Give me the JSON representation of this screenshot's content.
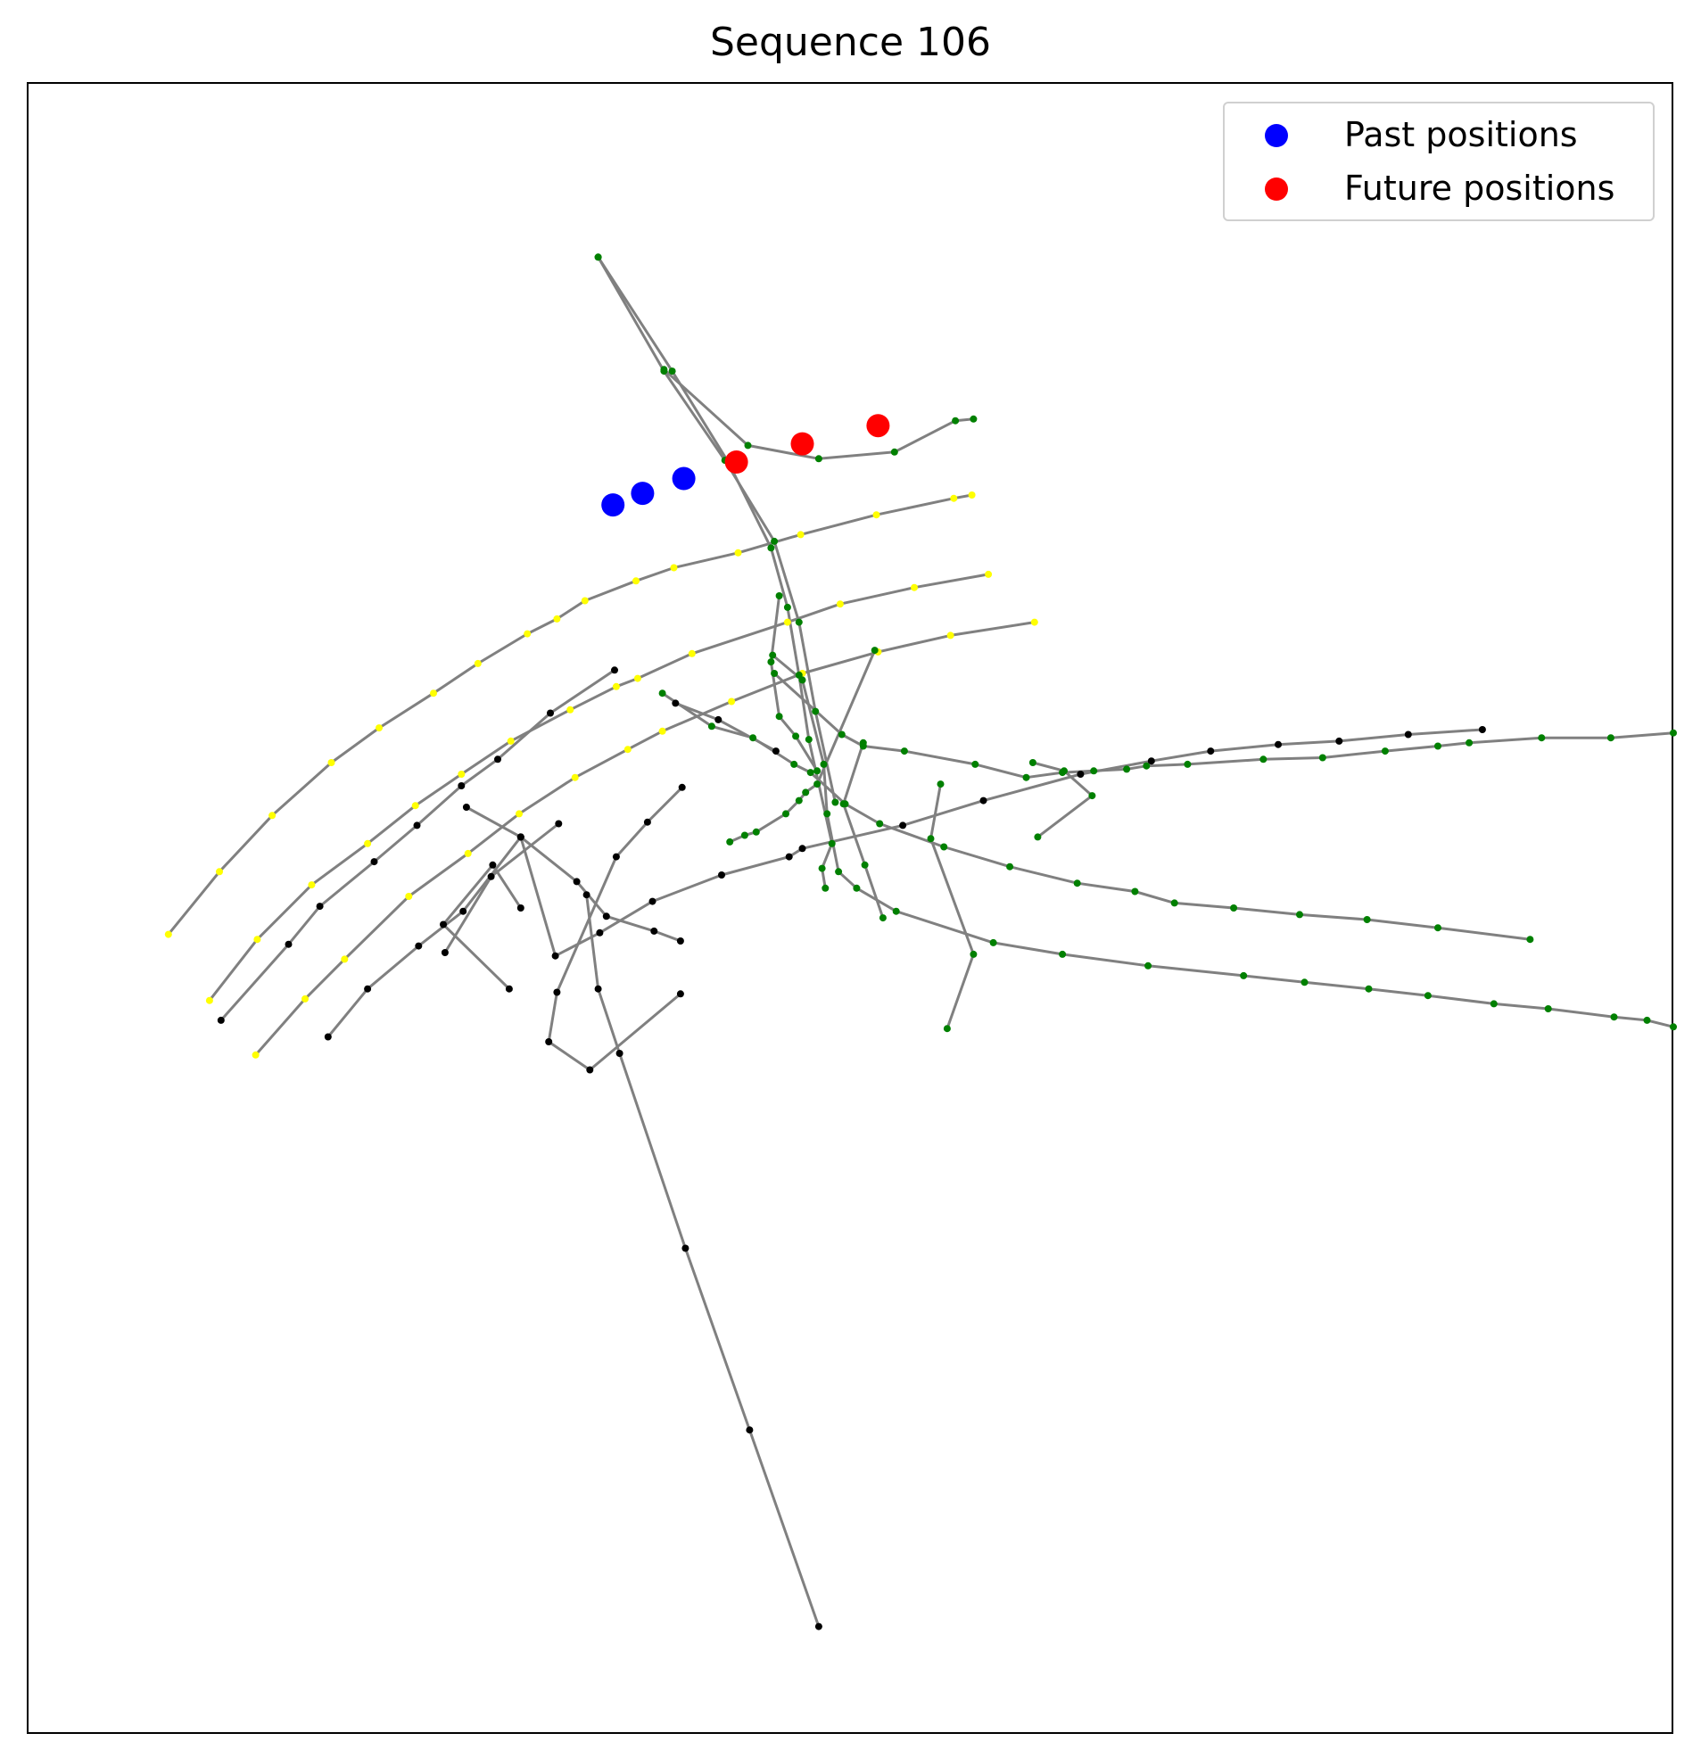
{
  "chart_data": {
    "type": "scatter",
    "title": "Sequence 106",
    "xlabel": "",
    "ylabel": "",
    "axes_ticks": "hidden",
    "grid": false,
    "legend_placement": "top-right",
    "colors": {
      "map_edges": "#808080",
      "node_yellow": "#ffff00",
      "node_green": "#008000",
      "node_black": "#000000",
      "past": "#0000ff",
      "future": "#ff0000",
      "frame": "#000000"
    },
    "legend": [
      {
        "label": "Past positions",
        "color": "#0000ff",
        "series": "past"
      },
      {
        "label": "Future positions",
        "color": "#ff0000",
        "series": "future"
      }
    ],
    "xlim": [
      0,
      1000
    ],
    "ylim": [
      0,
      1000
    ],
    "trajectory": {
      "past": [
        [
          356,
          744
        ],
        [
          374,
          751
        ],
        [
          399,
          760
        ]
      ],
      "future": [
        [
          431,
          770
        ],
        [
          471,
          781
        ],
        [
          517,
          792
        ]
      ]
    },
    "map_polylines": [
      {
        "color": "#ffff00",
        "points": [
          [
            86,
            484
          ],
          [
            117,
            522
          ],
          [
            149,
            556
          ],
          [
            185,
            588
          ],
          [
            214,
            609
          ],
          [
            247,
            630
          ],
          [
            274,
            648
          ],
          [
            304,
            666
          ],
          [
            322,
            675
          ],
          [
            339,
            686
          ],
          [
            370,
            698
          ],
          [
            393,
            706
          ],
          [
            432,
            715
          ],
          [
            470,
            726
          ],
          [
            516,
            738
          ],
          [
            563,
            748
          ],
          [
            574,
            750
          ]
        ]
      },
      {
        "color": "#ffff00",
        "points": [
          [
            111,
            444
          ],
          [
            140,
            481
          ],
          [
            173,
            514
          ],
          [
            207,
            539
          ],
          [
            236,
            562
          ],
          [
            264,
            581
          ],
          [
            294,
            601
          ],
          [
            330,
            620
          ],
          [
            358,
            634
          ],
          [
            371,
            639
          ],
          [
            404,
            654
          ],
          [
            462,
            673
          ],
          [
            494,
            684
          ],
          [
            539,
            694
          ],
          [
            584,
            702
          ]
        ]
      },
      {
        "color": "#ffff00",
        "points": [
          [
            139,
            411
          ],
          [
            169,
            445
          ],
          [
            193,
            469
          ],
          [
            232,
            507
          ],
          [
            268,
            533
          ],
          [
            299,
            557
          ],
          [
            333,
            579
          ],
          [
            365,
            596
          ],
          [
            386,
            607
          ],
          [
            428,
            625
          ],
          [
            471,
            642
          ],
          [
            517,
            655
          ],
          [
            561,
            665
          ],
          [
            612,
            673
          ]
        ]
      },
      {
        "color": "#008000",
        "points": [
          [
            347,
            894
          ],
          [
            392,
            825
          ],
          [
            426,
            770
          ],
          [
            452,
            718
          ],
          [
            462,
            682
          ],
          [
            469,
            641
          ],
          [
            475,
            602
          ],
          [
            489,
            539
          ],
          [
            483,
            524
          ],
          [
            485,
            512
          ]
        ]
      },
      {
        "color": "#008000",
        "points": [
          [
            347,
            894
          ],
          [
            387,
            825
          ],
          [
            424,
            771
          ],
          [
            454,
            722
          ],
          [
            469,
            673
          ],
          [
            479,
            619
          ],
          [
            491,
            564
          ]
        ]
      },
      {
        "color": "#008000",
        "points": [
          [
            387,
            826
          ],
          [
            438,
            780
          ],
          [
            481,
            772
          ],
          [
            527,
            776
          ],
          [
            564,
            795
          ],
          [
            575,
            796
          ]
        ]
      },
      {
        "color": "#008000",
        "points": [
          [
            386,
            630
          ],
          [
            416,
            610
          ],
          [
            441,
            603
          ],
          [
            466,
            587
          ],
          [
            476,
            582
          ],
          [
            497,
            563
          ],
          [
            518,
            551
          ],
          [
            557,
            537
          ],
          [
            597,
            525
          ],
          [
            638,
            515
          ],
          [
            673,
            510
          ],
          [
            697,
            503
          ],
          [
            733,
            500
          ],
          [
            773,
            496
          ],
          [
            814,
            493
          ],
          [
            857,
            488
          ],
          [
            913,
            481
          ]
        ]
      },
      {
        "color": "#008000",
        "points": [
          [
            457,
            689
          ],
          [
            452,
            649
          ],
          [
            457,
            616
          ],
          [
            467,
            604
          ],
          [
            480,
            583
          ]
        ]
      },
      {
        "color": "#008000",
        "points": [
          [
            453,
            653
          ],
          [
            471,
            638
          ],
          [
            484,
            587
          ],
          [
            486,
            557
          ],
          [
            493,
            522
          ],
          [
            504,
            512
          ],
          [
            528,
            498
          ],
          [
            587,
            479
          ],
          [
            629,
            472
          ],
          [
            681,
            465
          ],
          [
            739,
            459
          ],
          [
            776,
            455
          ],
          [
            815,
            451
          ],
          [
            851,
            447
          ],
          [
            891,
            442
          ],
          [
            924,
            439
          ],
          [
            964,
            434
          ],
          [
            984,
            432
          ],
          [
            1000,
            428
          ]
        ]
      },
      {
        "color": "#008000",
        "points": [
          [
            515,
            656
          ],
          [
            480,
            575
          ],
          [
            473,
            570
          ],
          [
            469,
            565
          ],
          [
            461,
            557
          ],
          [
            443,
            546
          ],
          [
            436,
            544
          ],
          [
            427,
            540
          ]
        ]
      },
      {
        "color": "#008000",
        "points": [
          [
            454,
            642
          ],
          [
            495,
            605
          ],
          [
            508,
            598
          ],
          [
            533,
            595
          ],
          [
            576,
            587
          ],
          [
            607,
            579
          ],
          [
            629,
            582
          ],
          [
            648,
            583
          ],
          [
            668,
            584
          ],
          [
            680,
            586
          ],
          [
            705,
            587
          ],
          [
            751,
            590
          ],
          [
            787,
            591
          ],
          [
            825,
            595
          ],
          [
            857,
            598
          ],
          [
            876,
            600
          ],
          [
            920,
            603
          ],
          [
            962,
            603
          ],
          [
            1000,
            606
          ]
        ]
      },
      {
        "color": "#008000",
        "points": [
          [
            611,
            588
          ],
          [
            630,
            583
          ],
          [
            647,
            568
          ],
          [
            614,
            543
          ]
        ]
      },
      {
        "color": "#008000",
        "points": [
          [
            555,
            575
          ],
          [
            549,
            542
          ],
          [
            575,
            472
          ],
          [
            559,
            427
          ]
        ]
      },
      {
        "color": "#008000",
        "points": [
          [
            508,
            600
          ],
          [
            496,
            563
          ],
          [
            509,
            526
          ],
          [
            520,
            494
          ]
        ]
      },
      {
        "color": "#000000",
        "points": [
          [
            394,
            624
          ],
          [
            420,
            614
          ],
          [
            455,
            595
          ]
        ]
      },
      {
        "color": "#000000",
        "points": [
          [
            357,
            644
          ],
          [
            318,
            618
          ],
          [
            286,
            590
          ],
          [
            264,
            574
          ],
          [
            237,
            550
          ],
          [
            211,
            528
          ],
          [
            178,
            501
          ],
          [
            159,
            478
          ],
          [
            118,
            432
          ]
        ]
      },
      {
        "color": "#000000",
        "points": [
          [
            300,
            543
          ],
          [
            265,
            498
          ],
          [
            238,
            477
          ],
          [
            207,
            451
          ],
          [
            183,
            422
          ]
        ]
      },
      {
        "color": "#000000",
        "points": [
          [
            300,
            543
          ],
          [
            321,
            471
          ],
          [
            348,
            485
          ],
          [
            380,
            504
          ],
          [
            422,
            520
          ],
          [
            463,
            531
          ],
          [
            471,
            536
          ],
          [
            532,
            550
          ],
          [
            581,
            565
          ],
          [
            640,
            581
          ],
          [
            683,
            589
          ],
          [
            719,
            595
          ],
          [
            760,
            599
          ],
          [
            797,
            601
          ],
          [
            839,
            605
          ],
          [
            884,
            608
          ]
        ]
      },
      {
        "color": "#000000",
        "points": [
          [
            254,
            473
          ],
          [
            282,
            519
          ],
          [
            323,
            551
          ]
        ]
      },
      {
        "color": "#000000",
        "points": [
          [
            267,
            561
          ],
          [
            300,
            543
          ],
          [
            334,
            516
          ],
          [
            352,
            495
          ],
          [
            381,
            486
          ],
          [
            397,
            480
          ]
        ]
      },
      {
        "color": "#000000",
        "points": [
          [
            398,
            573
          ],
          [
            377,
            552
          ],
          [
            358,
            531
          ],
          [
            322,
            449
          ],
          [
            317,
            419
          ],
          [
            342,
            402
          ],
          [
            397,
            448
          ]
        ]
      },
      {
        "color": "#000000",
        "points": [
          [
            340,
            508
          ],
          [
            347,
            451
          ],
          [
            360,
            412
          ],
          [
            400,
            294
          ],
          [
            439,
            184
          ],
          [
            481,
            65
          ]
        ]
      },
      {
        "color": "#000000",
        "points": [
          [
            300,
            500
          ],
          [
            283,
            526
          ],
          [
            253,
            490
          ],
          [
            293,
            451
          ]
        ]
      }
    ]
  }
}
